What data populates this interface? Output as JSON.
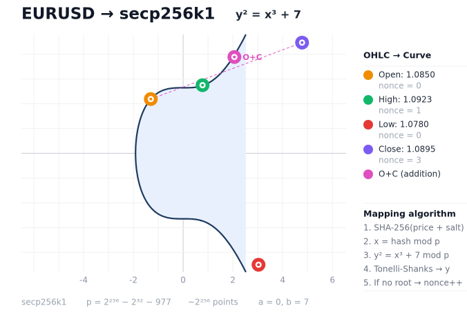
{
  "header": {
    "title": "EURUSD → secp256k1",
    "formula": "y² = x³ + 7"
  },
  "plot": {
    "xlim": [
      -6.5,
      6.55
    ],
    "ylim": [
      -4.8,
      4.8
    ],
    "xticks": [
      -4,
      -2,
      0,
      2,
      4,
      6
    ],
    "grid_step": 1,
    "curve": {
      "a": 0,
      "b": 7,
      "color": "#1e3a5f",
      "fill": "#e8f0fe"
    },
    "chord_color": "#e04fbf",
    "points": [
      {
        "x": -1.3,
        "y": 2.19,
        "color": "#f08c00"
      },
      {
        "x": 0.78,
        "y": 2.75,
        "color": "#12b76a"
      },
      {
        "x": 3.03,
        "y": -4.5,
        "color": "#e53935"
      },
      {
        "x": 4.78,
        "y": 4.47,
        "color": "#7c5cf0"
      },
      {
        "x": 2.06,
        "y": 3.89,
        "color": "#e04fbf",
        "label": "O+C"
      }
    ]
  },
  "legend": {
    "title": "OHLC → Curve",
    "items": [
      {
        "label": "Open: 1.0850",
        "note": "nonce = 0",
        "color": "#f08c00"
      },
      {
        "label": "High: 1.0923",
        "note": "nonce = 1",
        "color": "#12b76a"
      },
      {
        "label": "Low: 1.0780",
        "note": "nonce = 0",
        "color": "#e53935"
      },
      {
        "label": "Close: 1.0895",
        "note": "nonce = 3",
        "color": "#7c5cf0"
      },
      {
        "label": "O+C (addition)",
        "color": "#e04fbf"
      }
    ]
  },
  "algorithm": {
    "title": "Mapping algorithm",
    "steps": [
      "1. SHA-256(price + salt)",
      "2. x = hash mod p",
      "3. y² = x³ + 7 mod p",
      "4. Tonelli-Shanks → y",
      "5. If no root → nonce++"
    ]
  },
  "footer": [
    "secp256k1",
    "p = 2²⁵⁶ − 2³² − 977",
    "~2²⁵⁶ points",
    "a = 0, b = 7"
  ]
}
